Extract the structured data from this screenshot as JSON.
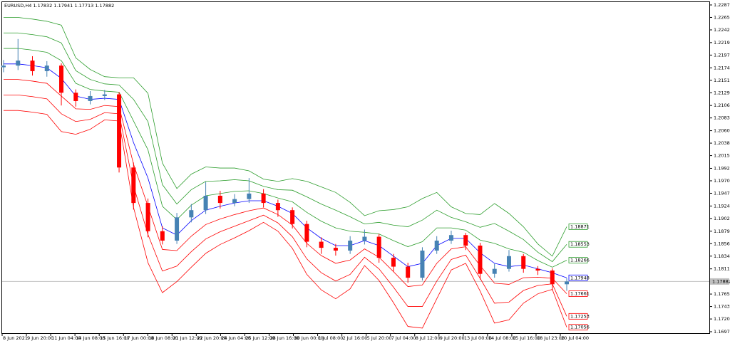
{
  "chart_data": {
    "type": "candlestick",
    "symbol": "EURUSD,H4",
    "up_color": "#4682b4",
    "down_color": "#ff0000",
    "open": [
      1.2175,
      1.2178,
      1.2187,
      1.2168,
      1.2178,
      1.2129,
      1.2114,
      1.2123,
      1.2126,
      1.1994,
      1.193,
      1.1879,
      1.1862,
      1.1904,
      1.1917,
      1.1943,
      1.193,
      1.1937,
      1.1947,
      1.193,
      1.1917,
      1.1892,
      1.186,
      1.1849,
      1.1844,
      1.1862,
      1.1869,
      1.1831,
      1.1815,
      1.1795,
      1.1844,
      1.1862,
      1.1872,
      1.1853,
      1.1802,
      1.1811,
      1.1834,
      1.1811,
      1.1808,
      1.17832
    ],
    "high": [
      1.2188,
      1.2226,
      1.2195,
      1.2186,
      1.2182,
      1.2135,
      1.2132,
      1.2134,
      1.213,
      1.2003,
      1.1938,
      1.1888,
      1.1912,
      1.1928,
      1.1968,
      1.1952,
      1.1946,
      1.1975,
      1.1955,
      1.1936,
      1.1922,
      1.1898,
      1.1868,
      1.1856,
      1.187,
      1.1882,
      1.1874,
      1.1838,
      1.1822,
      1.185,
      1.187,
      1.188,
      1.1876,
      1.1858,
      1.182,
      1.1845,
      1.1838,
      1.1816,
      1.1812,
      1.17941
    ],
    "low": [
      1.2166,
      1.217,
      1.216,
      1.2158,
      1.2106,
      1.2104,
      1.2108,
      1.2116,
      1.1985,
      1.1918,
      1.1868,
      1.1855,
      1.1856,
      1.1895,
      1.191,
      1.192,
      1.1924,
      1.193,
      1.1922,
      1.1905,
      1.1884,
      1.185,
      1.1838,
      1.1835,
      1.1838,
      1.1855,
      1.1822,
      1.1806,
      1.1786,
      1.179,
      1.1838,
      1.1856,
      1.1845,
      1.1792,
      1.1795,
      1.1806,
      1.1804,
      1.18,
      1.1772,
      1.17713
    ],
    "close": [
      1.2178,
      1.2187,
      1.2168,
      1.2178,
      1.2129,
      1.2114,
      1.2123,
      1.2126,
      1.1994,
      1.193,
      1.1879,
      1.1862,
      1.1904,
      1.1917,
      1.1943,
      1.193,
      1.1937,
      1.1947,
      1.193,
      1.1917,
      1.1892,
      1.186,
      1.1849,
      1.1844,
      1.1862,
      1.1869,
      1.1831,
      1.1815,
      1.1795,
      1.1844,
      1.1862,
      1.1872,
      1.1853,
      1.1802,
      1.1811,
      1.1834,
      1.1811,
      1.1808,
      1.17832,
      1.17882
    ],
    "bands": [
      {
        "color": "#2e9e2e",
        "values": [
          1.2265,
          1.2265,
          1.2262,
          1.2258,
          1.2251,
          1.2192,
          1.2171,
          1.2158,
          1.2156,
          1.2156,
          1.2128,
          1.2002,
          1.1956,
          1.1982,
          1.1995,
          1.1993,
          1.1993,
          1.1988,
          1.1973,
          1.1969,
          1.1974,
          1.1969,
          1.1959,
          1.1949,
          1.1931,
          1.1907,
          1.1916,
          1.1918,
          1.1923,
          1.1938,
          1.1949,
          1.1923,
          1.1911,
          1.1909,
          1.1929,
          1.1911,
          1.1887,
          1.1856,
          1.1834,
          1.18871
        ]
      },
      {
        "color": "#2e9e2e",
        "values": [
          1.2237,
          1.2237,
          1.2234,
          1.223,
          1.2219,
          1.2169,
          1.2153,
          1.2145,
          1.2143,
          1.2117,
          1.2077,
          1.1963,
          1.1928,
          1.1954,
          1.1969,
          1.197,
          1.1972,
          1.197,
          1.196,
          1.1954,
          1.1953,
          1.1941,
          1.1928,
          1.1917,
          1.1905,
          1.1892,
          1.1895,
          1.189,
          1.1887,
          1.1899,
          1.1917,
          1.1904,
          1.1896,
          1.1886,
          1.1893,
          1.1879,
          1.1864,
          1.1841,
          1.1824,
          1.18553
        ]
      },
      {
        "color": "#2e9e2e",
        "values": [
          1.2209,
          1.2209,
          1.2206,
          1.2202,
          1.2187,
          1.2146,
          1.2135,
          1.2132,
          1.213,
          1.2078,
          1.2026,
          1.1924,
          1.19,
          1.1926,
          1.1943,
          1.1947,
          1.1951,
          1.1952,
          1.1947,
          1.1939,
          1.1932,
          1.1913,
          1.1897,
          1.1885,
          1.1879,
          1.1877,
          1.1874,
          1.1862,
          1.1851,
          1.186,
          1.1885,
          1.1885,
          1.1881,
          1.1863,
          1.1857,
          1.1847,
          1.1841,
          1.1826,
          1.1814,
          1.18266
        ]
      },
      {
        "color": "#0000ff",
        "values": [
          1.2181,
          1.2181,
          1.2178,
          1.2174,
          1.2155,
          1.2123,
          1.2117,
          1.2119,
          1.2117,
          1.2039,
          1.1975,
          1.1885,
          1.1872,
          1.1898,
          1.1917,
          1.1924,
          1.193,
          1.1934,
          1.1934,
          1.1924,
          1.1911,
          1.1885,
          1.1866,
          1.1853,
          1.1853,
          1.1862,
          1.1853,
          1.1834,
          1.1815,
          1.1821,
          1.1853,
          1.1866,
          1.1866,
          1.184,
          1.1821,
          1.1815,
          1.1818,
          1.1811,
          1.1804,
          1.17948
        ]
      },
      {
        "color": "#ff0000",
        "values": [
          1.2153,
          1.2153,
          1.215,
          1.2146,
          1.2123,
          1.21,
          1.2099,
          1.2106,
          1.2104,
          1.2,
          1.1924,
          1.1846,
          1.1844,
          1.187,
          1.1891,
          1.1901,
          1.1909,
          1.1916,
          1.1921,
          1.1909,
          1.189,
          1.1857,
          1.1835,
          1.1821,
          1.1827,
          1.1847,
          1.1832,
          1.1806,
          1.1779,
          1.1782,
          1.1821,
          1.1847,
          1.1851,
          1.1817,
          1.1785,
          1.1783,
          1.1795,
          1.1796,
          1.1794,
          1.17661
        ]
      },
      {
        "color": "#ff0000",
        "values": [
          1.2125,
          1.2125,
          1.2122,
          1.2118,
          1.2091,
          1.2077,
          1.2081,
          1.2093,
          1.2091,
          1.1961,
          1.1873,
          1.1807,
          1.1816,
          1.1842,
          1.1865,
          1.1878,
          1.1888,
          1.1898,
          1.1908,
          1.1894,
          1.1869,
          1.1829,
          1.1804,
          1.1789,
          1.1801,
          1.1832,
          1.1811,
          1.1778,
          1.1743,
          1.1743,
          1.1789,
          1.1828,
          1.1836,
          1.1794,
          1.1749,
          1.1751,
          1.1772,
          1.1781,
          1.1784,
          1.17253
        ]
      },
      {
        "color": "#ff0000",
        "values": [
          1.2097,
          1.2097,
          1.2094,
          1.209,
          1.2059,
          1.2054,
          1.2063,
          1.208,
          1.2078,
          1.1922,
          1.1822,
          1.1768,
          1.1788,
          1.1814,
          1.1839,
          1.1855,
          1.1867,
          1.188,
          1.1895,
          1.1879,
          1.1848,
          1.1801,
          1.1773,
          1.1757,
          1.1775,
          1.1817,
          1.179,
          1.175,
          1.1707,
          1.1704,
          1.1757,
          1.1809,
          1.1821,
          1.1771,
          1.1713,
          1.1719,
          1.1749,
          1.1766,
          1.1774,
          1.17056
        ]
      }
    ],
    "ylim": [
      1.16936,
      1.22926
    ],
    "yticks": [
      1.22875,
      {
        "value": 1.2265,
        "label": "1.22650"
      },
      1.22425,
      1.22195,
      {
        "value": 1.2197,
        "label": "1.21970"
      },
      {
        "value": 1.2174,
        "label": "1.21740"
      },
      1.21515,
      {
        "value": 1.2129,
        "label": "1.21290"
      },
      {
        "value": 1.2106,
        "label": "1.21060"
      },
      1.20835,
      1.20605,
      {
        "value": 1.2038,
        "label": "1.20380"
      },
      1.20155,
      1.19925,
      {
        "value": 1.197,
        "label": "1.19700"
      },
      1.19475,
      1.19245,
      {
        "value": 1.1902,
        "label": "1.19020"
      },
      {
        "value": 1.1879,
        "label": "1.18790"
      },
      1.18565,
      {
        "value": 1.1834,
        "label": "1.18340"
      },
      {
        "value": 1.1811,
        "label": "1.18110"
      },
      1.17655,
      {
        "value": 1.1743,
        "label": "1.17430"
      },
      1.17205,
      1.16975
    ],
    "x_labels": [
      "8 Jun 2021",
      "9 Jun 20:00",
      "11 Jun 04:00",
      "14 Jun 08:00",
      "15 Jun 16:00",
      "17 Jun 00:00",
      "18 Jun 08:00",
      "21 Jun 12:00",
      "22 Jun 20:00",
      "24 Jun 04:00",
      "25 Jun 12:00",
      "28 Jun 16:00",
      "30 Jun 00:00",
      "1 Jul 08:00",
      "2 Jul 16:00",
      "5 Jul 20:00",
      "7 Jul 04:00",
      "8 Jul 12:00",
      "9 Jul 20:00",
      "13 Jul 00:00",
      "14 Jul 08:00",
      "15 Jul 16:00",
      "18 Jul 23:00",
      "20 Jul 04:00"
    ]
  }
}
